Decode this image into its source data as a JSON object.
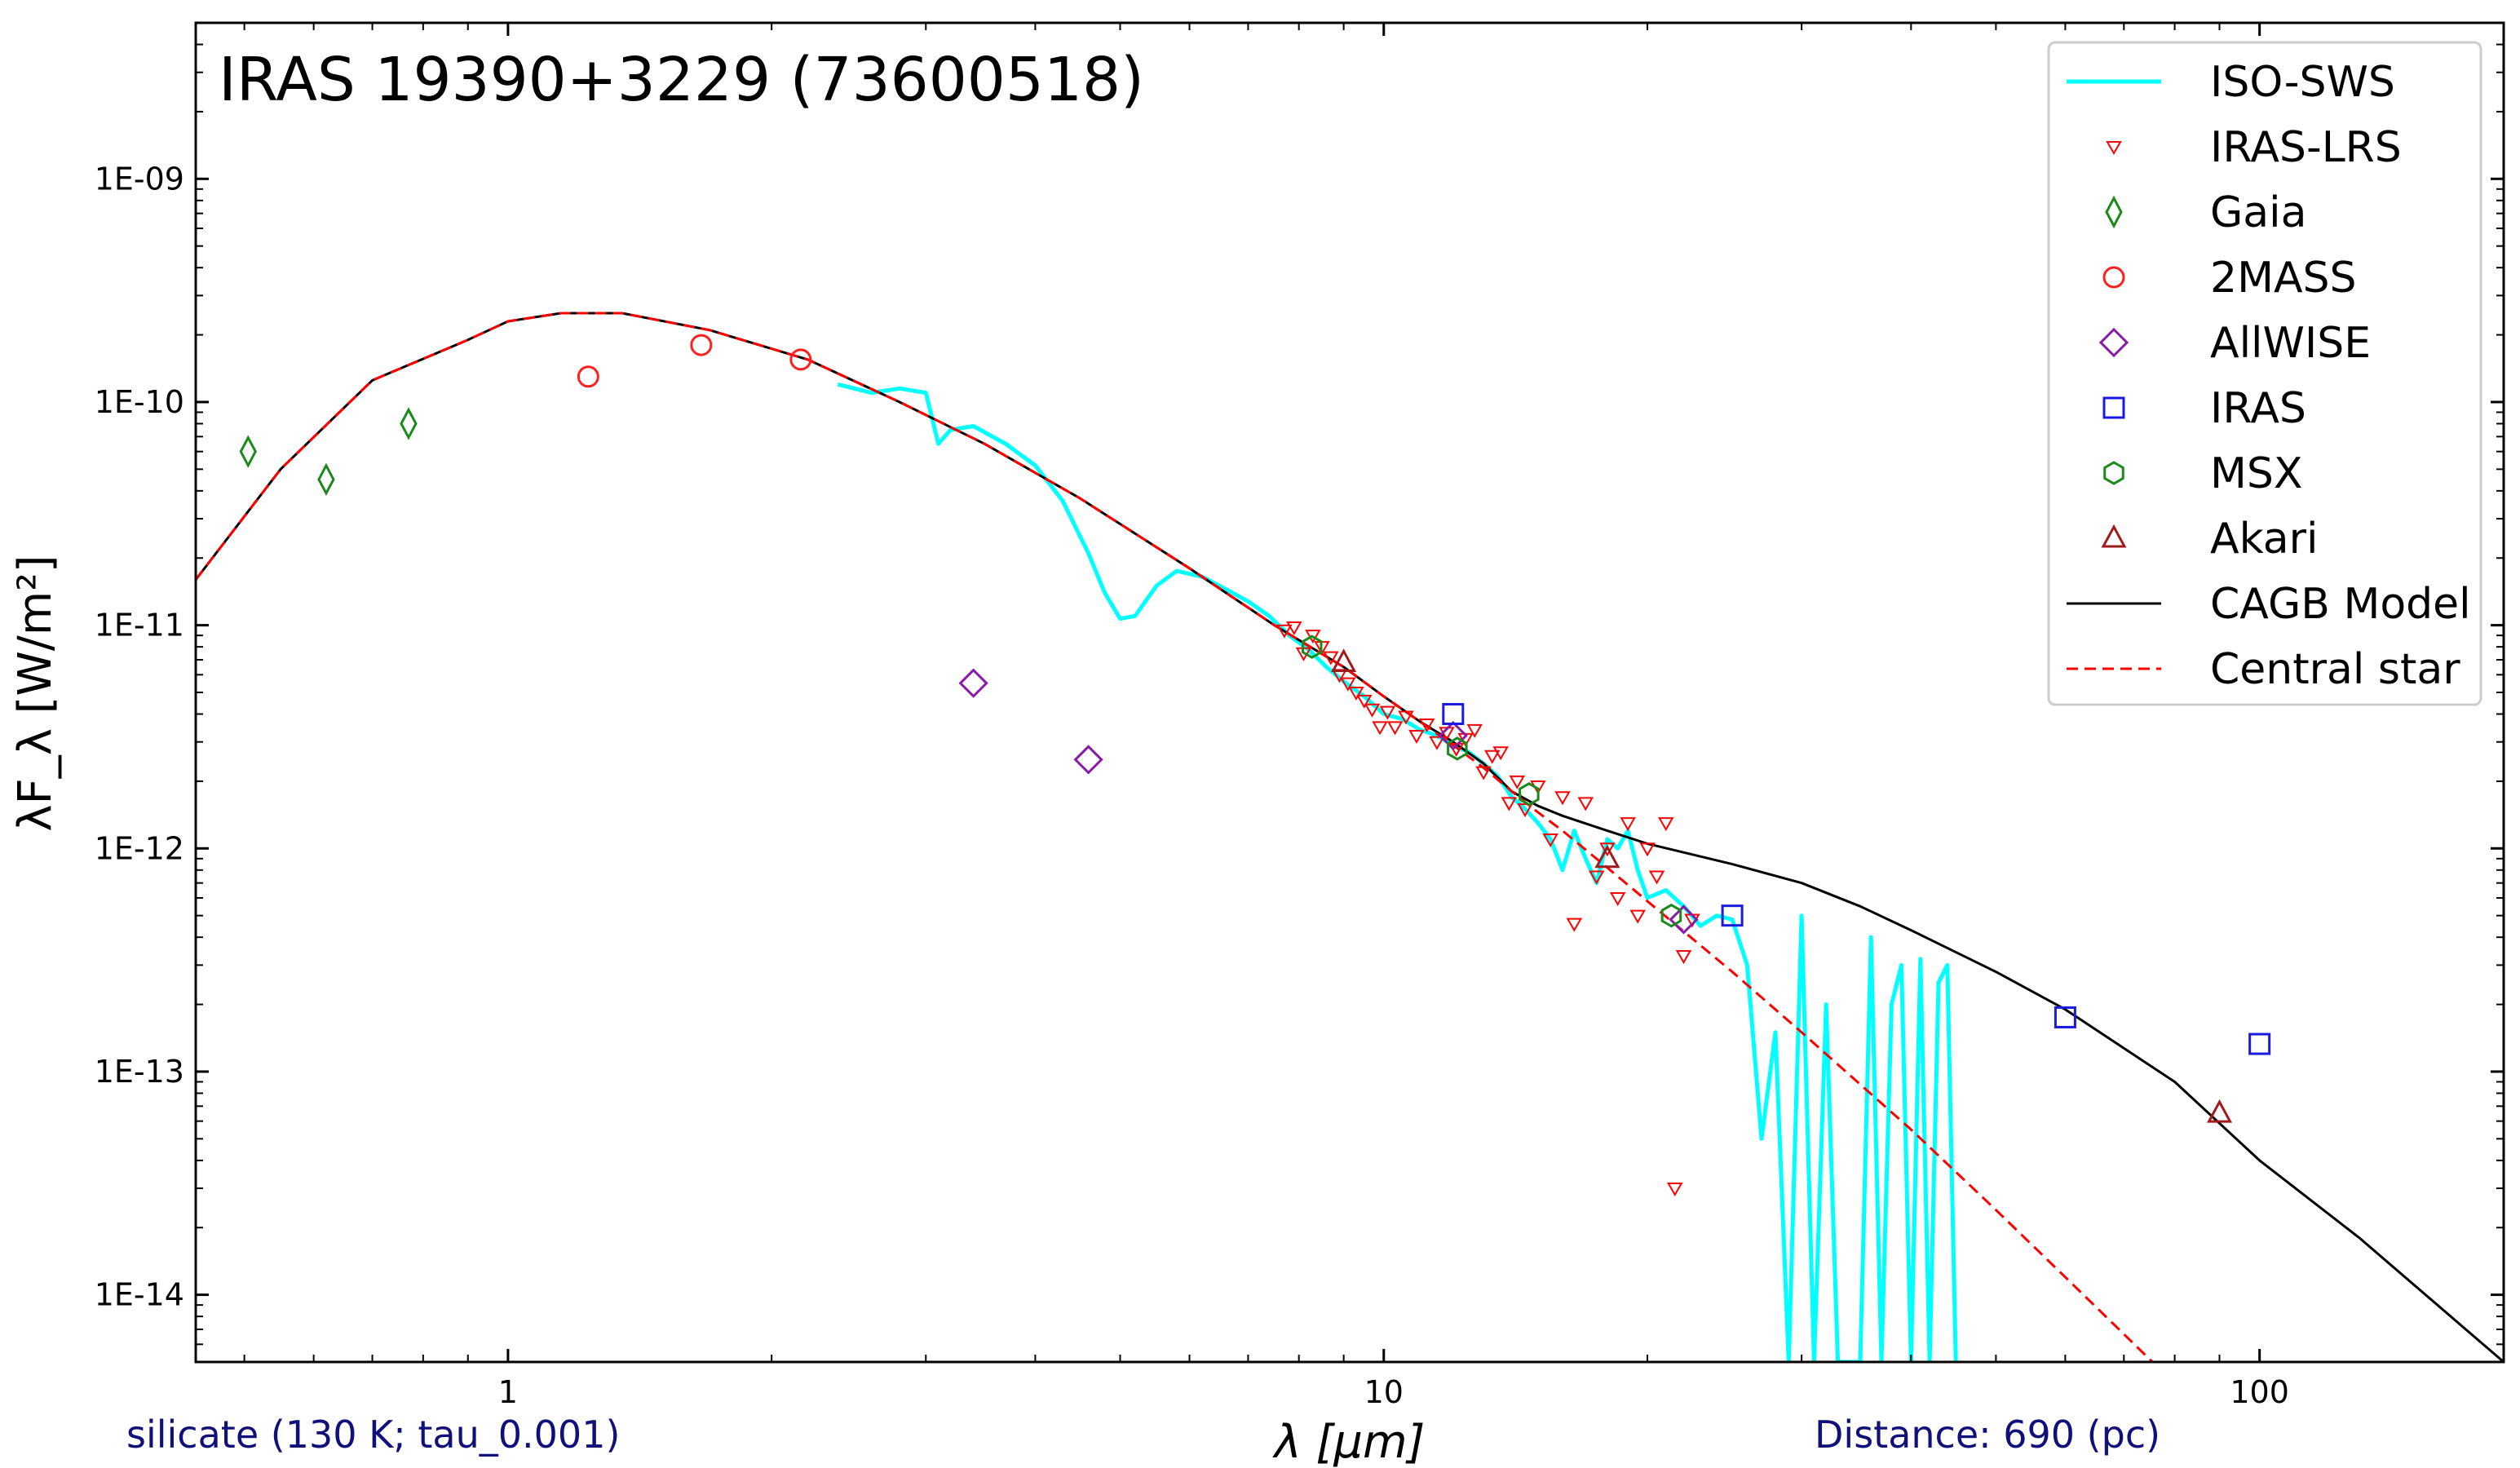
{
  "chart_data": {
    "type": "scatter",
    "title": "IRAS 19390+3229 (73600518)",
    "xlabel": "λ [μm]",
    "ylabel": "λF_λ [W/m²]",
    "xscale": "log",
    "yscale": "log",
    "xlim": [
      0.44,
      190
    ],
    "ylim": [
      5e-15,
      5e-09
    ],
    "xticks": [
      {
        "value": 1,
        "label": "1"
      },
      {
        "value": 10,
        "label": "10"
      },
      {
        "value": 100,
        "label": "100"
      }
    ],
    "yticks": [
      {
        "value": 1e-09,
        "label": "1E-09"
      },
      {
        "value": 1e-10,
        "label": "1E-10"
      },
      {
        "value": 1e-11,
        "label": "1E-11"
      },
      {
        "value": 1e-12,
        "label": "1E-12"
      },
      {
        "value": 1e-13,
        "label": "1E-13"
      },
      {
        "value": 1e-14,
        "label": "1E-14"
      }
    ],
    "grid": false,
    "legend_position": "top-right",
    "footnote_left": "silicate (130 K; tau_0.001)",
    "footnote_right": "Distance: 690 (pc)",
    "legend": [
      {
        "label": "ISO-SWS",
        "kind": "line",
        "color": "#00ffff",
        "dash": "solid"
      },
      {
        "label": "IRAS-LRS",
        "kind": "marker",
        "marker": "triangle-down-small",
        "color": "#ff0000"
      },
      {
        "label": "Gaia",
        "kind": "marker",
        "marker": "thin-diamond",
        "color": "#1a8a1a"
      },
      {
        "label": "2MASS",
        "kind": "marker",
        "marker": "circle",
        "color": "#ff2020"
      },
      {
        "label": "AllWISE",
        "kind": "marker",
        "marker": "diamond",
        "color": "#8a1aa8"
      },
      {
        "label": "IRAS",
        "kind": "marker",
        "marker": "square",
        "color": "#1a1ae0"
      },
      {
        "label": "MSX",
        "kind": "marker",
        "marker": "hexagon",
        "color": "#1a8a1a"
      },
      {
        "label": "Akari",
        "kind": "marker",
        "marker": "triangle-up",
        "color": "#a01a1a"
      },
      {
        "label": "CAGB Model",
        "kind": "line",
        "color": "#000000",
        "dash": "solid"
      },
      {
        "label": "Central star",
        "kind": "line",
        "color": "#ff0000",
        "dash": "dashed"
      }
    ],
    "series": [
      {
        "name": "ISO-SWS",
        "kind": "line",
        "color": "#00ffff",
        "x": [
          2.38,
          2.6,
          2.8,
          3.0,
          3.1,
          3.2,
          3.4,
          3.7,
          4.0,
          4.3,
          4.6,
          4.8,
          5.0,
          5.2,
          5.5,
          5.8,
          6.2,
          6.6,
          7.0,
          7.4,
          7.8,
          8.2,
          8.6,
          9.0,
          9.5,
          10.0,
          10.5,
          11.0,
          11.5,
          12.0,
          12.5,
          13.0,
          13.5,
          14.0,
          14.5,
          15.0,
          15.5,
          16.0,
          16.5,
          17.0,
          17.5,
          18.0,
          18.5,
          19.0,
          19.5,
          20.0,
          21.0,
          22.0,
          23.0,
          24.0,
          25.0,
          26.0,
          27.0,
          28.0,
          29.0,
          30.0,
          31.0,
          32.0,
          33.0,
          34.0,
          35.0,
          36.0,
          37.0,
          38.0,
          39.0,
          40.0,
          41.0,
          42.0,
          43.0,
          44.0,
          45.0
        ],
        "y": [
          1.2e-10,
          1.1e-10,
          1.15e-10,
          1.1e-10,
          6.5e-11,
          7.5e-11,
          7.8e-11,
          6.5e-11,
          5.2e-11,
          3.6e-11,
          2.1e-11,
          1.4e-11,
          1.07e-11,
          1.1e-11,
          1.5e-11,
          1.75e-11,
          1.65e-11,
          1.45e-11,
          1.28e-11,
          1.1e-11,
          9e-12,
          7.8e-12,
          6.5e-12,
          5.6e-12,
          4.8e-12,
          4e-12,
          3.8e-12,
          3.4e-12,
          3.2e-12,
          2.9e-12,
          2.7e-12,
          2.4e-12,
          2.1e-12,
          1.7e-12,
          1.5e-12,
          1.3e-12,
          1.1e-12,
          8e-13,
          1.2e-12,
          9e-13,
          7e-13,
          1.1e-12,
          1e-12,
          1.2e-12,
          8e-13,
          6e-13,
          6.5e-13,
          5.5e-13,
          4.5e-13,
          5e-13,
          4.8e-13,
          3e-13,
          5e-14,
          1.5e-13,
          5e-15,
          5e-13,
          5e-15,
          2e-13,
          5e-15,
          5e-15,
          5e-15,
          4e-13,
          5e-15,
          2e-13,
          3e-13,
          5e-15,
          3.2e-13,
          5e-15,
          2.5e-13,
          3e-13,
          5e-15
        ]
      },
      {
        "name": "CAGB Model",
        "kind": "line",
        "color": "#000000",
        "x": [
          0.44,
          0.55,
          0.7,
          0.9,
          1.0,
          1.15,
          1.35,
          1.7,
          2.2,
          2.8,
          3.5,
          4.5,
          6.0,
          7.5,
          9.0,
          10.0,
          11.0,
          12.0,
          13.0,
          14.0,
          15.0,
          16.0,
          18.0,
          20.0,
          25.0,
          30.0,
          35.0,
          40.0,
          50.0,
          60.0,
          80.0,
          100.0,
          130.0,
          190.0
        ],
        "y": [
          1.6e-11,
          5e-11,
          1.25e-10,
          1.9e-10,
          2.3e-10,
          2.5e-10,
          2.5e-10,
          2.1e-10,
          1.55e-10,
          1e-10,
          6.5e-11,
          3.7e-11,
          1.8e-11,
          1e-11,
          6.5e-12,
          4.8e-12,
          3.7e-12,
          3e-12,
          2.4e-12,
          1.8e-12,
          1.55e-12,
          1.4e-12,
          1.2e-12,
          1.05e-12,
          8.5e-13,
          7e-13,
          5.5e-13,
          4.3e-13,
          2.8e-13,
          1.9e-13,
          9e-14,
          4e-14,
          1.8e-14,
          5e-15
        ]
      },
      {
        "name": "Central star",
        "kind": "line",
        "color": "#ff0000",
        "dash": "dashed",
        "x": [
          0.44,
          0.55,
          0.7,
          0.9,
          1.0,
          1.15,
          1.35,
          1.7,
          2.2,
          2.8,
          3.5,
          4.5,
          6.0,
          7.5,
          9.0,
          10.0,
          11.0,
          12.0,
          13.0,
          14.0,
          15.0,
          16.0,
          18.0,
          20.0,
          25.0,
          30.0,
          40.0,
          50.0,
          60.0,
          80.0,
          100.0
        ],
        "y": [
          1.6e-11,
          5e-11,
          1.25e-10,
          1.9e-10,
          2.3e-10,
          2.5e-10,
          2.5e-10,
          2.1e-10,
          1.55e-10,
          1e-10,
          6.5e-11,
          3.7e-11,
          1.8e-11,
          1e-11,
          6.5e-12,
          4.8e-12,
          3.7e-12,
          2.9e-12,
          2.3e-12,
          1.8e-12,
          1.45e-12,
          1.2e-12,
          8.2e-13,
          5.8e-13,
          2.8e-13,
          1.5e-13,
          5.5e-14,
          2.4e-14,
          1.2e-14,
          4e-15,
          1.6e-15
        ]
      },
      {
        "name": "IRAS-LRS",
        "kind": "marker",
        "marker": "triangle-down-small",
        "color": "#ff0000",
        "x": [
          7.7,
          7.9,
          8.1,
          8.3,
          8.5,
          8.7,
          8.9,
          9.1,
          9.3,
          9.5,
          9.7,
          9.9,
          10.1,
          10.3,
          10.6,
          10.9,
          11.2,
          11.5,
          11.8,
          12.1,
          12.4,
          12.7,
          13.0,
          13.3,
          13.6,
          13.9,
          14.2,
          14.5,
          15.0,
          15.5,
          16.0,
          16.5,
          17.0,
          17.5,
          18.0,
          18.5,
          19.0,
          19.5,
          20.0,
          20.5,
          21.0,
          21.5,
          22.0,
          22.5
        ],
        "y": [
          9.5e-12,
          9.8e-12,
          7.5e-12,
          9e-12,
          8e-12,
          7.2e-12,
          6e-12,
          5.5e-12,
          5e-12,
          4.6e-12,
          4.2e-12,
          3.5e-12,
          4.1e-12,
          3.5e-12,
          3.9e-12,
          3.2e-12,
          3.6e-12,
          3e-12,
          3.3e-12,
          2.8e-12,
          3.1e-12,
          3.4e-12,
          2.2e-12,
          2.6e-12,
          2.7e-12,
          1.6e-12,
          2e-12,
          1.5e-12,
          1.9e-12,
          1.1e-12,
          1.7e-12,
          4.6e-13,
          1.6e-12,
          7.5e-13,
          1e-12,
          6e-13,
          1.3e-12,
          5e-13,
          1e-12,
          7.5e-13,
          1.3e-12,
          3e-14,
          3.3e-13,
          4.8e-13
        ]
      },
      {
        "name": "Gaia",
        "kind": "marker",
        "marker": "thin-diamond",
        "color": "#1a8a1a",
        "x": [
          0.505,
          0.62,
          0.77
        ],
        "y": [
          6e-11,
          4.5e-11,
          8e-11
        ]
      },
      {
        "name": "2MASS",
        "kind": "marker",
        "marker": "circle",
        "color": "#ff2020",
        "x": [
          1.235,
          1.662,
          2.159
        ],
        "y": [
          1.3e-10,
          1.8e-10,
          1.55e-10
        ]
      },
      {
        "name": "AllWISE",
        "kind": "marker",
        "marker": "diamond",
        "color": "#8a1aa8",
        "x": [
          3.4,
          4.6,
          12.0,
          22.0
        ],
        "y": [
          5.5e-12,
          2.5e-12,
          3.2e-12,
          4.8e-13
        ]
      },
      {
        "name": "IRAS",
        "kind": "marker",
        "marker": "square",
        "color": "#1a1ae0",
        "x": [
          12.0,
          25.0,
          60.0,
          100.0
        ],
        "y": [
          4e-12,
          5e-13,
          1.75e-13,
          1.33e-13
        ]
      },
      {
        "name": "MSX",
        "kind": "marker",
        "marker": "hexagon",
        "color": "#1a8a1a",
        "x": [
          8.28,
          12.13,
          14.65,
          21.3
        ],
        "y": [
          8e-12,
          2.8e-12,
          1.75e-12,
          5e-13
        ]
      },
      {
        "name": "Akari",
        "kind": "marker",
        "marker": "triangle-up",
        "color": "#a01a1a",
        "x": [
          9.0,
          18.0,
          90.0
        ],
        "y": [
          6.8e-12,
          9e-13,
          6.5e-14
        ]
      }
    ]
  }
}
